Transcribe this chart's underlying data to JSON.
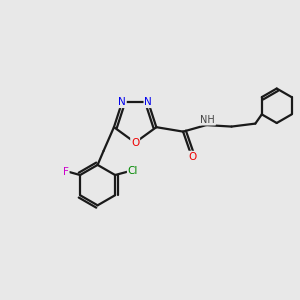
{
  "background_color": "#e8e8e8",
  "bond_color": "#1a1a1a",
  "atom_colors": {
    "N": "#0000ee",
    "O": "#ee0000",
    "F": "#cc00cc",
    "Cl": "#008800",
    "C": "#1a1a1a",
    "H": "#444444"
  },
  "figsize": [
    3.0,
    3.0
  ],
  "dpi": 100
}
